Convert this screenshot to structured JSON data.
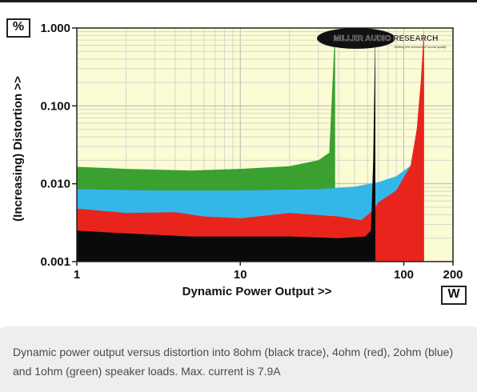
{
  "figure": {
    "y_unit_box": "%",
    "x_unit_box": "W",
    "logo": {
      "text": "MILLER AUDIO RESEARCH",
      "tagline": "Getting the measure of sound quality"
    },
    "caption": "Dynamic power output versus distortion into 8ohm (black trace), 4ohm (red), 2ohm (blue) and 1ohm (green) speaker loads. Max. current is 7.9A"
  },
  "chart_data": {
    "type": "area",
    "xlabel": "Dynamic Power Output >>",
    "ylabel": "(Increasing) Distortion >>",
    "x_scale": "log",
    "y_scale": "log",
    "xlim": [
      1,
      200
    ],
    "ylim": [
      0.001,
      1.0
    ],
    "x_ticks": [
      {
        "value": 1,
        "label": "1"
      },
      {
        "value": 10,
        "label": "10"
      },
      {
        "value": 100,
        "label": "100"
      },
      {
        "value": 200,
        "label": "200"
      }
    ],
    "y_ticks": [
      {
        "value": 0.001,
        "label": "0.001"
      },
      {
        "value": 0.01,
        "label": "0.010"
      },
      {
        "value": 0.1,
        "label": "0.100"
      },
      {
        "value": 1.0,
        "label": "1.000"
      }
    ],
    "grid": true,
    "background": "#fbfbd4",
    "series": [
      {
        "color": "#3aa030",
        "points": [
          [
            1,
            0.0165
          ],
          [
            2,
            0.0155
          ],
          [
            5,
            0.0148
          ],
          [
            10,
            0.0155
          ],
          [
            20,
            0.0168
          ],
          [
            30,
            0.02
          ],
          [
            35,
            0.025
          ],
          [
            38,
            1.0
          ]
        ]
      },
      {
        "color": "#35b6e8",
        "points": [
          [
            1,
            0.0085
          ],
          [
            3,
            0.0082
          ],
          [
            10,
            0.0082
          ],
          [
            30,
            0.0085
          ],
          [
            50,
            0.0092
          ],
          [
            70,
            0.0105
          ],
          [
            90,
            0.0125
          ],
          [
            110,
            0.017
          ],
          [
            125,
            0.04
          ],
          [
            133,
            1.0
          ]
        ]
      },
      {
        "color": "#e8241c",
        "points": [
          [
            1,
            0.0048
          ],
          [
            2,
            0.0042
          ],
          [
            4,
            0.0043
          ],
          [
            6,
            0.0038
          ],
          [
            10,
            0.0036
          ],
          [
            20,
            0.0042
          ],
          [
            40,
            0.0038
          ],
          [
            55,
            0.0034
          ],
          [
            62,
            0.0042
          ],
          [
            66,
            0.0048
          ],
          [
            70,
            0.0058
          ],
          [
            90,
            0.0082
          ],
          [
            110,
            0.017
          ],
          [
            120,
            0.05
          ],
          [
            127,
            0.2
          ],
          [
            133,
            1.0
          ]
        ]
      },
      {
        "color": "#0a0a0a",
        "points": [
          [
            1,
            0.0025
          ],
          [
            2,
            0.0023
          ],
          [
            5,
            0.0021
          ],
          [
            10,
            0.0021
          ],
          [
            20,
            0.0021
          ],
          [
            40,
            0.002
          ],
          [
            58,
            0.0021
          ],
          [
            63,
            0.0025
          ],
          [
            65,
            0.02
          ],
          [
            67,
            1.0
          ]
        ]
      }
    ]
  }
}
